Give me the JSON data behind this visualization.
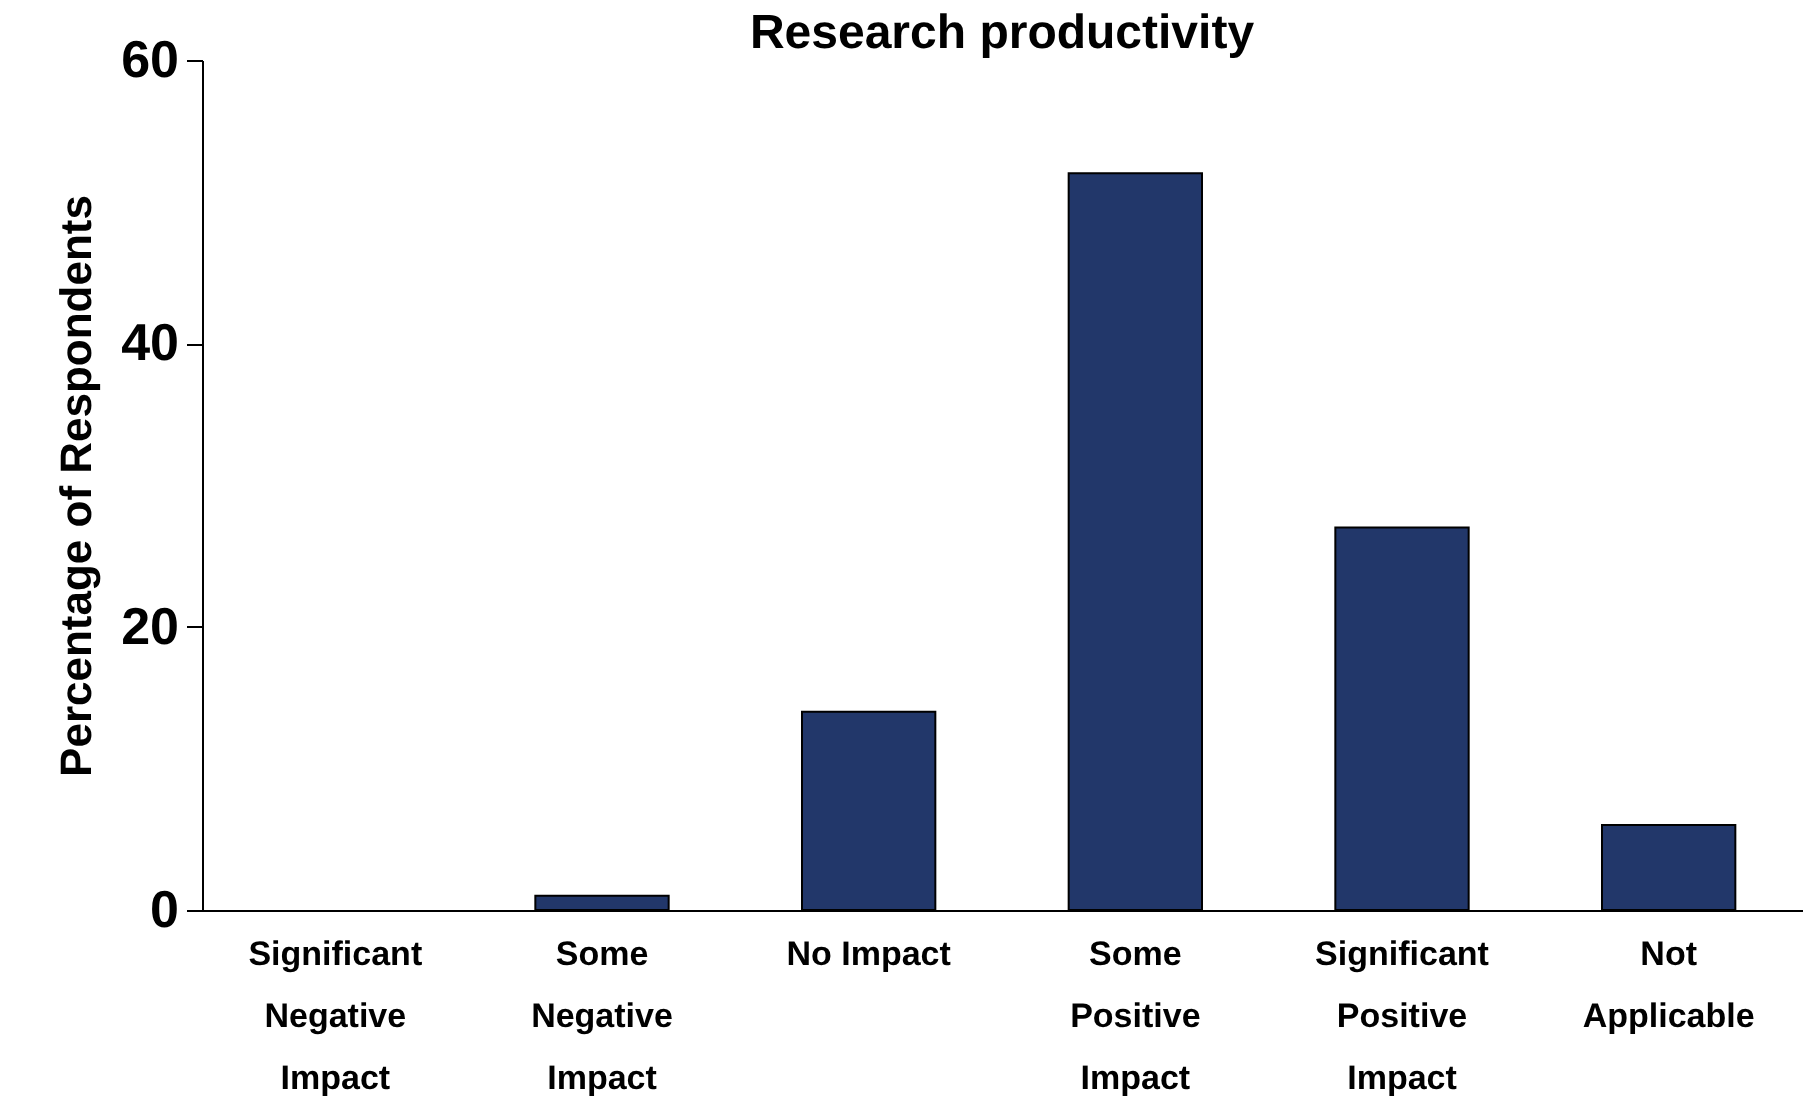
{
  "chart_data": {
    "type": "bar",
    "title": "Research productivity",
    "ylabel": "Percentage of Respondents",
    "categories": [
      "Significant Negative Impact",
      "Some Negative Impact",
      "No Impact",
      "Some Positive Impact",
      "Significant Positive Impact",
      "Not Applicable"
    ],
    "values": [
      0,
      1,
      14,
      52,
      27,
      6
    ],
    "color": "#22376a",
    "ylim": [
      0,
      60
    ],
    "yticks": [
      0,
      20,
      40,
      60
    ],
    "grid": false
  }
}
